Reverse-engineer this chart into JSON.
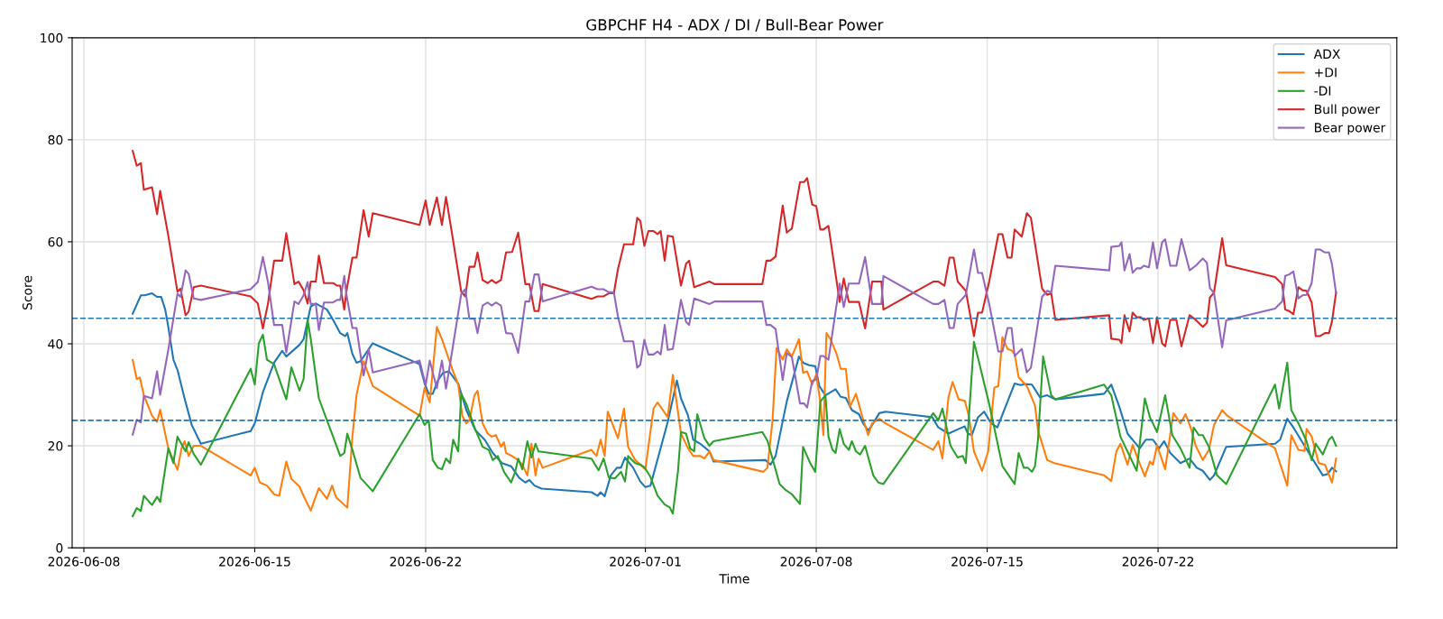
{
  "chart_data": {
    "type": "line",
    "title": "GBPCHF H4 - ADX / DI / Bull-Bear Power",
    "xlabel": "Time",
    "ylabel": "Score",
    "xlim": [
      "2026-06-07T12:29",
      "2026-07-31T18:43"
    ],
    "xticks": [
      "2026-06-08",
      "2026-06-15",
      "2026-06-22",
      "2026-07-01",
      "2026-07-08",
      "2026-07-15",
      "2026-07-22"
    ],
    "ylim": [
      0,
      100
    ],
    "yticks": [
      0,
      20,
      40,
      60,
      80,
      100
    ],
    "grid": true,
    "legend": "top right",
    "line_style": "solid",
    "marker": "none",
    "ref_lines": [
      {
        "axis": "y",
        "value": 45,
        "label": null,
        "color": "#1f77b4",
        "line_style": "dashed"
      },
      {
        "axis": "y",
        "value": 25,
        "label": null,
        "color": "#1f77b4",
        "line_style": "dashed"
      }
    ],
    "series": [
      {
        "name": "ADX",
        "color": "#1f77b4",
        "x": [
          "2026-06-10T00:00",
          "2026-06-10T08:00",
          "2026-06-10T12:00",
          "2026-06-10T19:00",
          "2026-06-11T00:00",
          "2026-06-11T04:00",
          "2026-06-11T08:00",
          "2026-06-11T11:00",
          "2026-06-11T16:00",
          "2026-06-11T20:00",
          "2026-06-12T03:00",
          "2026-06-12T10:00",
          "2026-06-12T19:00",
          "2026-06-14T20:00",
          "2026-06-15T00:00",
          "2026-06-15T08:00",
          "2026-06-15T19:00",
          "2026-06-16T03:00",
          "2026-06-16T07:00",
          "2026-06-16T20:00",
          "2026-06-17T00:00",
          "2026-06-17T07:00",
          "2026-06-17T12:00",
          "2026-06-17T23:00",
          "2026-06-18T05:00",
          "2026-06-18T12:00",
          "2026-06-18T17:00",
          "2026-06-18T19:00",
          "2026-06-19T00:00",
          "2026-06-19T04:00",
          "2026-06-19T08:00",
          "2026-06-19T20:00",
          "2026-06-21T18:00",
          "2026-06-21T23:00",
          "2026-06-22T03:00",
          "2026-06-22T07:00",
          "2026-06-22T12:00",
          "2026-06-22T17:00",
          "2026-06-22T23:00",
          "2026-06-23T08:00",
          "2026-06-23T16:00",
          "2026-06-24T01:00",
          "2026-06-24T10:00",
          "2026-06-24T18:00",
          "2026-06-25T03:00",
          "2026-06-25T12:00",
          "2026-06-25T20:00",
          "2026-06-26T02:00",
          "2026-06-26T06:00",
          "2026-06-26T11:00",
          "2026-06-26T18:00",
          "2026-06-28T19:00",
          "2026-06-29T01:00",
          "2026-06-29T04:00",
          "2026-06-29T08:00",
          "2026-06-29T14:00",
          "2026-06-29T20:00",
          "2026-06-30T00:00",
          "2026-06-30T04:00",
          "2026-06-30T12:00",
          "2026-06-30T19:00",
          "2026-07-01T00:00",
          "2026-07-01T05:00",
          "2026-07-01T11:00",
          "2026-07-01T22:00",
          "2026-07-02T07:00",
          "2026-07-02T11:00",
          "2026-07-02T18:00",
          "2026-07-02T23:00",
          "2026-07-03T06:00",
          "2026-07-03T15:00",
          "2026-07-03T19:00",
          "2026-07-05T22:00",
          "2026-07-06T03:00",
          "2026-07-06T08:00",
          "2026-07-06T19:00",
          "2026-07-07T07:00",
          "2026-07-07T11:00",
          "2026-07-07T17:00",
          "2026-07-07T23:00",
          "2026-07-08T03:00",
          "2026-07-08T09:00",
          "2026-07-08T19:00",
          "2026-07-09T00:00",
          "2026-07-09T05:00",
          "2026-07-09T11:00",
          "2026-07-09T18:00",
          "2026-07-09T22:00",
          "2026-07-10T03:00",
          "2026-07-10T07:00",
          "2026-07-10T14:00",
          "2026-07-10T20:00",
          "2026-07-12T18:00",
          "2026-07-13T00:00",
          "2026-07-13T10:00",
          "2026-07-13T20:00",
          "2026-07-14T02:00",
          "2026-07-14T05:00",
          "2026-07-14T09:00",
          "2026-07-14T15:00",
          "2026-07-14T21:00",
          "2026-07-15T04:00",
          "2026-07-15T10:00",
          "2026-07-15T14:00",
          "2026-07-16T03:00",
          "2026-07-16T09:00",
          "2026-07-16T13:00",
          "2026-07-16T20:00",
          "2026-07-17T04:00",
          "2026-07-17T11:00",
          "2026-07-17T19:00",
          "2026-07-19T19:00",
          "2026-07-20T02:00",
          "2026-07-20T10:00",
          "2026-07-20T18:00",
          "2026-07-21T01:00",
          "2026-07-21T06:00",
          "2026-07-21T12:00",
          "2026-07-21T19:00",
          "2026-07-22T01:00",
          "2026-07-22T06:00",
          "2026-07-22T12:00",
          "2026-07-22T22:00",
          "2026-07-23T07:00",
          "2026-07-23T14:00",
          "2026-07-23T20:00",
          "2026-07-24T03:00",
          "2026-07-24T07:00",
          "2026-07-24T19:00",
          "2026-07-26T19:00",
          "2026-07-27T00:00",
          "2026-07-27T07:00",
          "2026-07-27T13:00",
          "2026-07-28T07:00",
          "2026-07-28T18:00",
          "2026-07-28T23:00",
          "2026-07-29T03:00",
          "2026-07-29T07:00"
        ],
        "values": [
          45.9,
          49.5,
          49.5,
          49.9,
          49.2,
          49.2,
          46.7,
          43.3,
          36.9,
          34.9,
          29.3,
          24.1,
          20.4,
          22.9,
          24.4,
          30.5,
          36.3,
          38.6,
          37.5,
          39.8,
          40.9,
          47.3,
          47.9,
          46.7,
          44.7,
          42.1,
          41.5,
          42.1,
          38.0,
          36.3,
          36.6,
          40.1,
          36.0,
          32.2,
          30.2,
          30.2,
          32.8,
          34.3,
          34.6,
          32.2,
          27.0,
          23.0,
          21.2,
          18.6,
          16.6,
          16.0,
          13.7,
          12.8,
          13.3,
          12.2,
          11.6,
          10.9,
          10.2,
          10.9,
          10.1,
          14.2,
          15.7,
          15.7,
          17.7,
          15.7,
          13.0,
          11.9,
          12.2,
          16.6,
          24.7,
          32.8,
          29.3,
          25.9,
          21.2,
          20.4,
          18.9,
          16.9,
          17.2,
          16.3,
          18.0,
          28.7,
          37.5,
          36.3,
          35.8,
          35.6,
          31.7,
          29.9,
          31.1,
          29.6,
          29.4,
          27.0,
          26.2,
          24.4,
          23.0,
          24.1,
          26.4,
          26.7,
          25.6,
          23.6,
          22.4,
          23.3,
          23.8,
          22.4,
          22.1,
          25.6,
          26.7,
          24.4,
          23.6,
          25.6,
          32.2,
          31.9,
          32.1,
          32.0,
          29.5,
          29.9,
          29.1,
          30.2,
          32.0,
          27.6,
          22.4,
          20.7,
          19.5,
          21.2,
          21.2,
          19.5,
          20.9,
          18.6,
          16.6,
          17.5,
          15.7,
          15.1,
          13.3,
          14.2,
          19.8,
          20.4,
          21.2,
          25.3,
          23.6,
          17.7,
          14.2,
          14.5,
          15.7,
          15.0
        ]
      },
      {
        "name": "+DI",
        "color": "#ff7f0e",
        "x": [
          "2026-06-10T00:00",
          "2026-06-10T04:00",
          "2026-06-10T07:00",
          "2026-06-10T11:00",
          "2026-06-10T19:00",
          "2026-06-11T00:00",
          "2026-06-11T03:00",
          "2026-06-11T11:00",
          "2026-06-11T20:00",
          "2026-06-12T00:00",
          "2026-06-12T03:00",
          "2026-06-12T07:00",
          "2026-06-12T12:00",
          "2026-06-12T19:00",
          "2026-06-14T20:00",
          "2026-06-15T00:00",
          "2026-06-15T05:00",
          "2026-06-15T12:00",
          "2026-06-15T19:00",
          "2026-06-16T00:00",
          "2026-06-16T07:00",
          "2026-06-16T12:00",
          "2026-06-16T20:00",
          "2026-06-17T00:00",
          "2026-06-17T07:00",
          "2026-06-17T15:00",
          "2026-06-17T23:00",
          "2026-06-18T04:00",
          "2026-06-18T08:00",
          "2026-06-18T19:00",
          "2026-06-19T00:00",
          "2026-06-19T04:00",
          "2026-06-19T11:00",
          "2026-06-19T20:00",
          "2026-06-21T18:00",
          "2026-06-21T23:00",
          "2026-06-22T04:00",
          "2026-06-22T11:00",
          "2026-06-22T16:00",
          "2026-06-22T20:00",
          "2026-06-23T02:00",
          "2026-06-23T08:00",
          "2026-06-23T12:00",
          "2026-06-23T16:00",
          "2026-06-23T19:00",
          "2026-06-24T00:00",
          "2026-06-24T03:00",
          "2026-06-24T08:00",
          "2026-06-24T13:00",
          "2026-06-24T17:00",
          "2026-06-24T21:00",
          "2026-06-25T02:00",
          "2026-06-25T05:00",
          "2026-06-25T07:00",
          "2026-06-25T13:00",
          "2026-06-25T19:00",
          "2026-06-25T23:00",
          "2026-06-26T04:00",
          "2026-06-26T08:00",
          "2026-06-26T12:00",
          "2026-06-26T15:00",
          "2026-06-26T19:00",
          "2026-06-28T19:00",
          "2026-06-29T00:00",
          "2026-06-29T04:00",
          "2026-06-29T08:00",
          "2026-06-29T11:00",
          "2026-06-29T21:00",
          "2026-06-30T03:00",
          "2026-06-30T07:00",
          "2026-06-30T14:00",
          "2026-07-01T00:00",
          "2026-07-01T08:00",
          "2026-07-01T12:00",
          "2026-07-01T22:00",
          "2026-07-02T03:00",
          "2026-07-02T11:00",
          "2026-07-02T18:00",
          "2026-07-02T23:00",
          "2026-07-03T06:00",
          "2026-07-03T10:00",
          "2026-07-03T15:00",
          "2026-07-03T19:00",
          "2026-07-05T20:00",
          "2026-07-06T00:00",
          "2026-07-06T05:00",
          "2026-07-06T09:00",
          "2026-07-06T15:00",
          "2026-07-06T19:00",
          "2026-07-07T00:00",
          "2026-07-07T07:00",
          "2026-07-07T11:00",
          "2026-07-07T15:00",
          "2026-07-07T20:00",
          "2026-07-08T00:00",
          "2026-07-08T04:00",
          "2026-07-08T07:00",
          "2026-07-08T10:00",
          "2026-07-08T14:00",
          "2026-07-08T20:00",
          "2026-07-09T00:00",
          "2026-07-09T05:00",
          "2026-07-09T09:00",
          "2026-07-09T15:00",
          "2026-07-09T21:00",
          "2026-07-10T03:00",
          "2026-07-10T07:00",
          "2026-07-10T14:00",
          "2026-07-10T20:00",
          "2026-07-12T19:00",
          "2026-07-13T00:00",
          "2026-07-13T04:00",
          "2026-07-13T10:00",
          "2026-07-13T14:00",
          "2026-07-13T20:00",
          "2026-07-14T02:00",
          "2026-07-14T06:00",
          "2026-07-14T11:00",
          "2026-07-14T19:00",
          "2026-07-15T01:00",
          "2026-07-15T07:00",
          "2026-07-15T11:00",
          "2026-07-15T15:00",
          "2026-07-15T20:00",
          "2026-07-16T00:00",
          "2026-07-16T03:00",
          "2026-07-16T07:00",
          "2026-07-16T15:00",
          "2026-07-16T23:00",
          "2026-07-17T02:00",
          "2026-07-17T11:00",
          "2026-07-17T18:00",
          "2026-07-19T19:00",
          "2026-07-20T02:00",
          "2026-07-20T07:00",
          "2026-07-20T11:00",
          "2026-07-20T18:00",
          "2026-07-20T23:00",
          "2026-07-21T04:00",
          "2026-07-21T11:00",
          "2026-07-21T16:00",
          "2026-07-21T19:00",
          "2026-07-21T23:00",
          "2026-07-22T07:00",
          "2026-07-22T15:00",
          "2026-07-22T22:00",
          "2026-07-23T03:00",
          "2026-07-23T08:00",
          "2026-07-23T13:00",
          "2026-07-23T20:00",
          "2026-07-24T02:00",
          "2026-07-24T07:00",
          "2026-07-24T15:00",
          "2026-07-24T20:00",
          "2026-07-26T19:00",
          "2026-07-27T07:00",
          "2026-07-27T11:00",
          "2026-07-27T18:00",
          "2026-07-28T00:00",
          "2026-07-28T02:00",
          "2026-07-28T07:00",
          "2026-07-28T14:00",
          "2026-07-28T20:00",
          "2026-07-29T03:00",
          "2026-07-29T07:00"
        ],
        "values": [
          36.8,
          33.1,
          33.4,
          29.9,
          25.9,
          24.7,
          27.1,
          19.5,
          15.3,
          19.5,
          20.9,
          18.0,
          20.0,
          20.0,
          14.2,
          15.7,
          12.8,
          12.2,
          10.5,
          10.2,
          16.9,
          13.5,
          12.0,
          10.2,
          7.3,
          11.7,
          9.6,
          12.2,
          9.9,
          7.9,
          21.8,
          29.9,
          36.6,
          31.7,
          25.9,
          31.4,
          28.5,
          43.3,
          40.9,
          38.6,
          35.1,
          32.0,
          25.9,
          24.4,
          25.0,
          29.9,
          30.8,
          24.4,
          22.4,
          21.8,
          22.1,
          19.8,
          20.7,
          18.6,
          18.0,
          17.2,
          16.3,
          14.2,
          20.4,
          14.2,
          17.5,
          15.7,
          19.2,
          18.0,
          21.2,
          18.0,
          26.7,
          21.5,
          27.3,
          19.8,
          17.2,
          15.4,
          27.3,
          28.5,
          25.6,
          33.9,
          22.4,
          19.5,
          18.0,
          18.0,
          17.5,
          18.9,
          17.2,
          14.9,
          15.7,
          25.0,
          39.2,
          36.9,
          38.9,
          37.5,
          40.9,
          34.3,
          34.6,
          32.0,
          34.0,
          28.5,
          22.1,
          42.1,
          40.9,
          38.0,
          35.1,
          35.1,
          27.6,
          30.2,
          25.9,
          22.1,
          24.4,
          25.3,
          24.4,
          19.2,
          20.9,
          17.5,
          29.6,
          32.5,
          29.1,
          28.8,
          25.9,
          18.9,
          15.1,
          18.9,
          31.4,
          31.7,
          41.3,
          39.0,
          38.7,
          38.0,
          33.4,
          31.7,
          27.9,
          23.0,
          17.2,
          16.6,
          14.2,
          13.1,
          18.9,
          20.4,
          16.3,
          20.2,
          17.5,
          14.0,
          16.9,
          16.3,
          20.1,
          15.4,
          26.4,
          24.4,
          26.2,
          23.6,
          20.0,
          17.2,
          19.2,
          24.1,
          27.0,
          25.9,
          19.5,
          12.2,
          22.1,
          19.2,
          19.0,
          23.3,
          21.8,
          16.6,
          16.3,
          12.8,
          17.5
        ]
      },
      {
        "name": "-DI",
        "color": "#2ca02c",
        "x": [
          "2026-06-10T00:00",
          "2026-06-10T04:00",
          "2026-06-10T08:00",
          "2026-06-10T11:00",
          "2026-06-10T19:00",
          "2026-06-11T00:00",
          "2026-06-11T03:00",
          "2026-06-11T11:00",
          "2026-06-11T16:00",
          "2026-06-11T20:00",
          "2026-06-12T04:00",
          "2026-06-12T07:00",
          "2026-06-12T12:00",
          "2026-06-12T19:00",
          "2026-06-14T20:00",
          "2026-06-15T00:00",
          "2026-06-15T04:00",
          "2026-06-15T08:00",
          "2026-06-15T12:00",
          "2026-06-15T19:00",
          "2026-06-16T07:00",
          "2026-06-16T12:00",
          "2026-06-16T20:00",
          "2026-06-17T00:00",
          "2026-06-17T04:00",
          "2026-06-17T07:00",
          "2026-06-17T15:00",
          "2026-06-17T23:00",
          "2026-06-18T05:00",
          "2026-06-18T12:00",
          "2026-06-18T16:00",
          "2026-06-18T19:00",
          "2026-06-19T00:00",
          "2026-06-19T08:00",
          "2026-06-19T20:00",
          "2026-06-21T18:00",
          "2026-06-21T23:00",
          "2026-06-22T03:00",
          "2026-06-22T07:00",
          "2026-06-22T12:00",
          "2026-06-22T16:00",
          "2026-06-22T20:00",
          "2026-06-23T00:00",
          "2026-06-23T03:00",
          "2026-06-23T08:00",
          "2026-06-23T11:00",
          "2026-06-23T16:00",
          "2026-06-24T00:00",
          "2026-06-24T08:00",
          "2026-06-24T14:00",
          "2026-06-24T18:00",
          "2026-06-24T23:00",
          "2026-06-25T05:00",
          "2026-06-25T12:00",
          "2026-06-25T16:00",
          "2026-06-25T19:00",
          "2026-06-25T23:00",
          "2026-06-26T04:00",
          "2026-06-26T08:00",
          "2026-06-26T12:00",
          "2026-06-26T15:00",
          "2026-06-28T19:00",
          "2026-06-29T02:00",
          "2026-06-29T07:00",
          "2026-06-29T12:00",
          "2026-06-29T18:00",
          "2026-06-30T00:00",
          "2026-06-30T04:00",
          "2026-06-30T07:00",
          "2026-06-30T14:00",
          "2026-06-30T19:00",
          "2026-06-30T23:00",
          "2026-07-01T05:00",
          "2026-07-01T12:00",
          "2026-07-01T19:00",
          "2026-07-02T00:00",
          "2026-07-02T03:00",
          "2026-07-02T08:00",
          "2026-07-02T11:00",
          "2026-07-02T16:00",
          "2026-07-02T20:00",
          "2026-07-03T00:00",
          "2026-07-03T03:00",
          "2026-07-03T10:00",
          "2026-07-03T15:00",
          "2026-07-03T19:00",
          "2026-07-05T19:00",
          "2026-07-06T00:00",
          "2026-07-06T12:00",
          "2026-07-06T18:00",
          "2026-07-07T00:00",
          "2026-07-07T08:00",
          "2026-07-07T11:00",
          "2026-07-07T18:00",
          "2026-07-07T23:00",
          "2026-07-08T04:00",
          "2026-07-08T09:00",
          "2026-07-08T12:00",
          "2026-07-08T16:00",
          "2026-07-08T19:00",
          "2026-07-08T23:00",
          "2026-07-09T03:00",
          "2026-07-09T08:00",
          "2026-07-09T11:00",
          "2026-07-09T15:00",
          "2026-07-09T19:00",
          "2026-07-10T00:00",
          "2026-07-10T08:00",
          "2026-07-10T13:00",
          "2026-07-10T18:00",
          "2026-07-12T19:00",
          "2026-07-13T00:00",
          "2026-07-13T04:00",
          "2026-07-13T12:00",
          "2026-07-13T19:00",
          "2026-07-14T00:00",
          "2026-07-14T03:00",
          "2026-07-14T11:00",
          "2026-07-14T15:00",
          "2026-07-15T02:00",
          "2026-07-15T15:00",
          "2026-07-16T03:00",
          "2026-07-16T07:00",
          "2026-07-16T12:00",
          "2026-07-16T16:00",
          "2026-07-16T20:00",
          "2026-07-16T23:00",
          "2026-07-17T02:00",
          "2026-07-17T07:00",
          "2026-07-17T15:00",
          "2026-07-17T19:00",
          "2026-07-19T19:00",
          "2026-07-20T02:00",
          "2026-07-20T11:00",
          "2026-07-21T03:00",
          "2026-07-21T11:00",
          "2026-07-21T16:00",
          "2026-07-21T23:00",
          "2026-07-22T07:00",
          "2026-07-22T14:00",
          "2026-07-22T22:00",
          "2026-07-23T07:00",
          "2026-07-23T11:00",
          "2026-07-23T16:00",
          "2026-07-23T20:00",
          "2026-07-24T02:00",
          "2026-07-24T10:00",
          "2026-07-24T19:00",
          "2026-07-26T19:00",
          "2026-07-26T23:00",
          "2026-07-27T07:00",
          "2026-07-27T11:00",
          "2026-07-27T18:00",
          "2026-07-28T02:00",
          "2026-07-28T07:00",
          "2026-07-28T11:00",
          "2026-07-28T18:00",
          "2026-07-29T00:00",
          "2026-07-29T03:00",
          "2026-07-29T07:00"
        ],
        "values": [
          6.2,
          7.8,
          7.2,
          10.2,
          8.4,
          10.0,
          9.0,
          19.5,
          16.6,
          21.8,
          18.9,
          20.7,
          18.4,
          16.3,
          35.1,
          32.0,
          40.1,
          41.8,
          36.9,
          36.0,
          29.1,
          35.4,
          30.8,
          33.1,
          44.7,
          41.0,
          29.3,
          25.0,
          21.8,
          18.0,
          18.6,
          22.4,
          19.2,
          13.7,
          11.1,
          26.2,
          24.1,
          25.0,
          17.2,
          15.7,
          15.4,
          17.5,
          16.6,
          21.2,
          18.9,
          30.2,
          28.2,
          23.6,
          19.8,
          19.2,
          17.2,
          18.0,
          14.9,
          12.8,
          14.9,
          17.5,
          15.4,
          20.9,
          17.7,
          20.4,
          18.9,
          17.5,
          15.2,
          17.5,
          13.8,
          13.6,
          14.9,
          13.0,
          18.0,
          16.6,
          16.3,
          15.8,
          13.9,
          10.2,
          8.5,
          7.9,
          6.7,
          14.9,
          22.7,
          22.4,
          19.5,
          18.9,
          26.2,
          21.5,
          20.0,
          20.9,
          22.7,
          21.0,
          12.5,
          11.3,
          10.5,
          8.6,
          19.8,
          16.6,
          14.9,
          28.7,
          29.9,
          21.8,
          19.2,
          18.6,
          23.3,
          20.4,
          19.2,
          20.9,
          18.9,
          18.3,
          20.0,
          14.2,
          12.8,
          12.5,
          26.4,
          25.0,
          27.3,
          20.0,
          17.7,
          18.0,
          16.6,
          40.4,
          37.2,
          28.2,
          16.0,
          12.5,
          18.6,
          15.7,
          15.7,
          14.9,
          16.0,
          21.2,
          37.5,
          29.9,
          29.1,
          32.0,
          29.9,
          21.8,
          15.1,
          29.3,
          25.6,
          22.7,
          29.9,
          22.1,
          19.5,
          15.7,
          23.6,
          22.1,
          22.1,
          19.8,
          14.2,
          12.5,
          32.0,
          27.3,
          36.3,
          27.0,
          24.4,
          20.9,
          17.2,
          20.4,
          18.3,
          21.2,
          21.8,
          20.0
        ]
      },
      {
        "name": "Bull power",
        "color": "#d62728",
        "x": [
          "2026-06-10T00:00",
          "2026-06-10T04:00",
          "2026-06-10T08:00",
          "2026-06-10T11:00",
          "2026-06-10T19:00",
          "2026-06-11T00:00",
          "2026-06-11T03:00",
          "2026-06-11T11:00",
          "2026-06-11T20:00",
          "2026-06-11T23:00",
          "2026-06-12T04:00",
          "2026-06-12T07:00",
          "2026-06-12T12:00",
          "2026-06-12T19:00",
          "2026-06-14T20:00",
          "2026-06-15T03:00",
          "2026-06-15T08:00",
          "2026-06-15T13:00",
          "2026-06-15T19:00",
          "2026-06-16T03:00",
          "2026-06-16T07:00",
          "2026-06-16T15:00",
          "2026-06-16T19:00",
          "2026-06-17T00:00",
          "2026-06-17T04:00",
          "2026-06-17T07:00",
          "2026-06-17T12:00",
          "2026-06-17T15:00",
          "2026-06-17T20:00",
          "2026-06-18T05:00",
          "2026-06-18T09:00",
          "2026-06-18T12:00",
          "2026-06-18T16:00",
          "2026-06-18T18:00",
          "2026-06-19T00:00",
          "2026-06-19T04:00",
          "2026-06-19T11:00",
          "2026-06-19T16:00",
          "2026-06-19T20:00",
          "2026-06-21T18:00",
          "2026-06-22T00:00",
          "2026-06-22T04:00",
          "2026-06-22T11:00",
          "2026-06-22T16:00",
          "2026-06-22T20:00",
          "2026-06-23T02:00",
          "2026-06-23T11:00",
          "2026-06-23T15:00",
          "2026-06-23T19:00",
          "2026-06-24T00:00",
          "2026-06-24T03:00",
          "2026-06-24T08:00",
          "2026-06-24T13:00",
          "2026-06-24T17:00",
          "2026-06-24T21:00",
          "2026-06-25T02:00",
          "2026-06-25T07:00",
          "2026-06-25T13:00",
          "2026-06-25T19:00",
          "2026-06-26T02:00",
          "2026-06-26T06:00",
          "2026-06-26T11:00",
          "2026-06-26T15:00",
          "2026-06-26T19:00",
          "2026-06-28T19:00",
          "2026-06-29T01:00",
          "2026-06-29T07:00",
          "2026-06-29T12:00",
          "2026-06-29T17:00",
          "2026-06-29T21:00",
          "2026-06-30T03:00",
          "2026-06-30T12:00",
          "2026-06-30T16:00",
          "2026-06-30T19:00",
          "2026-06-30T23:00",
          "2026-07-01T03:00",
          "2026-07-01T08:00",
          "2026-07-01T12:00",
          "2026-07-01T15:00",
          "2026-07-01T19:00",
          "2026-07-01T22:00",
          "2026-07-02T03:00",
          "2026-07-02T11:00",
          "2026-07-02T16:00",
          "2026-07-02T19:00",
          "2026-07-03T00:00",
          "2026-07-03T15:00",
          "2026-07-03T20:00",
          "2026-07-05T19:00",
          "2026-07-05T23:00",
          "2026-07-06T03:00",
          "2026-07-06T08:00",
          "2026-07-06T15:00",
          "2026-07-06T19:00",
          "2026-07-07T00:00",
          "2026-07-07T08:00",
          "2026-07-07T12:00",
          "2026-07-07T15:00",
          "2026-07-07T20:00",
          "2026-07-08T00:00",
          "2026-07-08T04:00",
          "2026-07-08T07:00",
          "2026-07-08T12:00",
          "2026-07-08T23:00",
          "2026-07-09T03:00",
          "2026-07-09T08:00",
          "2026-07-09T18:00",
          "2026-07-10T00:00",
          "2026-07-10T07:00",
          "2026-07-10T16:00",
          "2026-07-10T18:00",
          "2026-07-12T19:00",
          "2026-07-13T00:00",
          "2026-07-13T06:00",
          "2026-07-13T11:00",
          "2026-07-13T15:00",
          "2026-07-13T19:00",
          "2026-07-14T03:00",
          "2026-07-14T11:00",
          "2026-07-14T15:00",
          "2026-07-14T19:00",
          "2026-07-15T02:00",
          "2026-07-15T11:00",
          "2026-07-15T15:00",
          "2026-07-15T20:00",
          "2026-07-16T00:00",
          "2026-07-16T03:00",
          "2026-07-16T10:00",
          "2026-07-16T15:00",
          "2026-07-16T19:00",
          "2026-07-17T06:00",
          "2026-07-17T11:00",
          "2026-07-17T15:00",
          "2026-07-17T19:00",
          "2026-07-20T00:00",
          "2026-07-20T02:00",
          "2026-07-20T10:00",
          "2026-07-20T12:00",
          "2026-07-20T15:00",
          "2026-07-20T20:00",
          "2026-07-20T23:00",
          "2026-07-21T03:00",
          "2026-07-21T07:00",
          "2026-07-21T10:00",
          "2026-07-21T15:00",
          "2026-07-21T19:00",
          "2026-07-21T23:00",
          "2026-07-22T04:00",
          "2026-07-22T07:00",
          "2026-07-22T12:00",
          "2026-07-22T18:00",
          "2026-07-22T23:00",
          "2026-07-23T07:00",
          "2026-07-23T13:00",
          "2026-07-23T20:00",
          "2026-07-24T00:00",
          "2026-07-24T03:00",
          "2026-07-24T07:00",
          "2026-07-24T15:00",
          "2026-07-24T19:00",
          "2026-07-26T19:00",
          "2026-07-27T02:00",
          "2026-07-27T05:00",
          "2026-07-27T09:00",
          "2026-07-27T13:00",
          "2026-07-27T18:00",
          "2026-07-27T22:00",
          "2026-07-28T02:00",
          "2026-07-28T07:00",
          "2026-07-28T11:00",
          "2026-07-28T15:00",
          "2026-07-28T20:00",
          "2026-07-29T00:00",
          "2026-07-29T03:00",
          "2026-07-29T07:00"
        ],
        "values": [
          77.8,
          74.9,
          75.4,
          70.2,
          70.7,
          65.4,
          70.0,
          61.2,
          50.2,
          50.8,
          45.6,
          46.3,
          51.1,
          51.4,
          49.3,
          47.9,
          43.0,
          47.9,
          56.3,
          56.3,
          61.7,
          51.7,
          52.2,
          50.5,
          47.9,
          52.2,
          52.2,
          57.3,
          51.9,
          51.9,
          51.4,
          51.4,
          46.7,
          50.2,
          56.9,
          56.9,
          66.2,
          61.0,
          65.6,
          63.3,
          68.1,
          63.3,
          68.7,
          63.3,
          68.8,
          61.5,
          50.2,
          49.3,
          55.1,
          55.1,
          57.9,
          52.5,
          51.9,
          52.5,
          51.9,
          52.5,
          57.9,
          58.0,
          61.8,
          51.7,
          51.7,
          46.4,
          46.4,
          51.7,
          48.8,
          49.3,
          49.3,
          49.9,
          49.9,
          54.6,
          59.5,
          59.5,
          64.7,
          64.1,
          59.2,
          62.1,
          62.1,
          61.5,
          62.1,
          56.3,
          61.2,
          61.0,
          51.4,
          55.7,
          56.3,
          51.1,
          52.2,
          51.7,
          51.7,
          56.3,
          56.3,
          57.1,
          67.1,
          61.8,
          62.6,
          71.7,
          71.7,
          72.5,
          67.3,
          67.0,
          62.4,
          62.4,
          63.1,
          48.2,
          52.8,
          48.2,
          48.2,
          43.0,
          52.2,
          52.2,
          46.7,
          52.2,
          52.2,
          51.4,
          56.9,
          56.9,
          52.2,
          50.4,
          41.5,
          46.1,
          46.1,
          52.2,
          61.5,
          61.5,
          56.9,
          56.9,
          62.4,
          61.0,
          65.6,
          64.7,
          50.8,
          49.6,
          49.9,
          44.7,
          45.6,
          41.0,
          40.8,
          40.1,
          45.6,
          42.4,
          46.1,
          45.2,
          45.2,
          44.7,
          45.0,
          40.1,
          45.2,
          40.1,
          39.5,
          44.7,
          44.7,
          39.5,
          45.6,
          44.7,
          43.3,
          44.1,
          49.1,
          50.0,
          60.7,
          55.4,
          53.1,
          51.7,
          46.7,
          46.4,
          45.8,
          51.1,
          50.5,
          50.4,
          48.1,
          41.5,
          41.5,
          42.1,
          42.1,
          44.4,
          50.1
        ]
      },
      {
        "name": "Bear power",
        "color": "#9467bd",
        "x": [
          "2026-06-10T00:00",
          "2026-06-10T04:00",
          "2026-06-10T08:00",
          "2026-06-10T11:00",
          "2026-06-10T19:00",
          "2026-06-11T00:00",
          "2026-06-11T03:00",
          "2026-06-11T11:00",
          "2026-06-11T20:00",
          "2026-06-11T23:00",
          "2026-06-12T04:00",
          "2026-06-12T07:00",
          "2026-06-12T12:00",
          "2026-06-12T19:00",
          "2026-06-14T20:00",
          "2026-06-15T03:00",
          "2026-06-15T08:00",
          "2026-06-15T13:00",
          "2026-06-15T19:00",
          "2026-06-16T03:00",
          "2026-06-16T07:00",
          "2026-06-16T15:00",
          "2026-06-16T19:00",
          "2026-06-17T00:00",
          "2026-06-17T04:00",
          "2026-06-17T07:00",
          "2026-06-17T12:00",
          "2026-06-17T15:00",
          "2026-06-17T20:00",
          "2026-06-18T05:00",
          "2026-06-18T09:00",
          "2026-06-18T12:00",
          "2026-06-18T16:00",
          "2026-06-18T18:00",
          "2026-06-19T00:00",
          "2026-06-19T04:00",
          "2026-06-19T11:00",
          "2026-06-19T16:00",
          "2026-06-19T20:00",
          "2026-06-21T18:00",
          "2026-06-22T00:00",
          "2026-06-22T04:00",
          "2026-06-22T11:00",
          "2026-06-22T16:00",
          "2026-06-22T20:00",
          "2026-06-23T02:00",
          "2026-06-23T11:00",
          "2026-06-23T15:00",
          "2026-06-23T19:00",
          "2026-06-24T00:00",
          "2026-06-24T03:00",
          "2026-06-24T08:00",
          "2026-06-24T13:00",
          "2026-06-24T17:00",
          "2026-06-24T21:00",
          "2026-06-25T02:00",
          "2026-06-25T07:00",
          "2026-06-25T13:00",
          "2026-06-25T19:00",
          "2026-06-26T02:00",
          "2026-06-26T06:00",
          "2026-06-26T11:00",
          "2026-06-26T15:00",
          "2026-06-26T19:00",
          "2026-06-28T19:00",
          "2026-06-29T01:00",
          "2026-06-29T07:00",
          "2026-06-29T12:00",
          "2026-06-29T17:00",
          "2026-06-29T21:00",
          "2026-06-30T03:00",
          "2026-06-30T12:00",
          "2026-06-30T16:00",
          "2026-06-30T19:00",
          "2026-06-30T23:00",
          "2026-07-01T03:00",
          "2026-07-01T08:00",
          "2026-07-01T12:00",
          "2026-07-01T15:00",
          "2026-07-01T19:00",
          "2026-07-01T22:00",
          "2026-07-02T03:00",
          "2026-07-02T11:00",
          "2026-07-02T16:00",
          "2026-07-02T19:00",
          "2026-07-03T00:00",
          "2026-07-03T15:00",
          "2026-07-03T20:00",
          "2026-07-05T19:00",
          "2026-07-05T23:00",
          "2026-07-06T03:00",
          "2026-07-06T08:00",
          "2026-07-06T15:00",
          "2026-07-06T19:00",
          "2026-07-07T00:00",
          "2026-07-07T08:00",
          "2026-07-07T12:00",
          "2026-07-07T15:00",
          "2026-07-07T20:00",
          "2026-07-08T00:00",
          "2026-07-08T04:00",
          "2026-07-08T07:00",
          "2026-07-08T12:00",
          "2026-07-08T23:00",
          "2026-07-09T03:00",
          "2026-07-09T08:00",
          "2026-07-09T18:00",
          "2026-07-10T00:00",
          "2026-07-10T07:00",
          "2026-07-10T16:00",
          "2026-07-10T18:00",
          "2026-07-12T19:00",
          "2026-07-13T00:00",
          "2026-07-13T06:00",
          "2026-07-13T11:00",
          "2026-07-13T15:00",
          "2026-07-13T19:00",
          "2026-07-14T03:00",
          "2026-07-14T11:00",
          "2026-07-14T15:00",
          "2026-07-14T19:00",
          "2026-07-15T02:00",
          "2026-07-15T11:00",
          "2026-07-15T15:00",
          "2026-07-15T20:00",
          "2026-07-16T00:00",
          "2026-07-16T03:00",
          "2026-07-16T10:00",
          "2026-07-16T15:00",
          "2026-07-16T19:00",
          "2026-07-17T06:00",
          "2026-07-17T11:00",
          "2026-07-17T15:00",
          "2026-07-17T19:00",
          "2026-07-20T00:00",
          "2026-07-20T02:00",
          "2026-07-20T10:00",
          "2026-07-20T12:00",
          "2026-07-20T15:00",
          "2026-07-20T20:00",
          "2026-07-20T23:00",
          "2026-07-21T03:00",
          "2026-07-21T07:00",
          "2026-07-21T10:00",
          "2026-07-21T15:00",
          "2026-07-21T19:00",
          "2026-07-21T23:00",
          "2026-07-22T04:00",
          "2026-07-22T07:00",
          "2026-07-22T12:00",
          "2026-07-22T18:00",
          "2026-07-22T23:00",
          "2026-07-23T07:00",
          "2026-07-23T13:00",
          "2026-07-23T20:00",
          "2026-07-24T00:00",
          "2026-07-24T03:00",
          "2026-07-24T07:00",
          "2026-07-24T15:00",
          "2026-07-24T19:00",
          "2026-07-26T19:00",
          "2026-07-27T02:00",
          "2026-07-27T05:00",
          "2026-07-27T09:00",
          "2026-07-27T13:00",
          "2026-07-27T18:00",
          "2026-07-27T22:00",
          "2026-07-28T02:00",
          "2026-07-28T07:00",
          "2026-07-28T11:00",
          "2026-07-28T15:00",
          "2026-07-28T20:00",
          "2026-07-29T00:00",
          "2026-07-29T03:00",
          "2026-07-29T07:00"
        ],
        "values": [
          22.2,
          25.1,
          24.6,
          29.8,
          29.3,
          34.6,
          30.0,
          38.8,
          49.8,
          49.2,
          54.4,
          53.7,
          48.9,
          48.6,
          50.7,
          52.1,
          57.0,
          52.1,
          43.7,
          43.7,
          38.3,
          48.3,
          47.8,
          49.5,
          52.1,
          47.8,
          47.8,
          42.7,
          48.1,
          48.1,
          48.6,
          48.6,
          53.3,
          49.8,
          43.1,
          43.1,
          33.8,
          39.0,
          34.4,
          36.7,
          31.9,
          36.7,
          31.3,
          36.7,
          31.2,
          38.5,
          49.8,
          50.7,
          44.9,
          44.9,
          42.1,
          47.5,
          48.1,
          47.5,
          48.1,
          47.5,
          42.1,
          42.0,
          38.2,
          48.3,
          48.3,
          53.6,
          53.6,
          48.3,
          51.2,
          50.7,
          50.7,
          50.1,
          50.1,
          45.4,
          40.5,
          40.5,
          35.3,
          35.9,
          40.8,
          37.9,
          37.9,
          38.5,
          37.9,
          43.7,
          38.8,
          39.0,
          48.6,
          44.3,
          43.7,
          48.9,
          47.8,
          48.3,
          48.3,
          43.7,
          43.7,
          42.9,
          32.9,
          38.2,
          37.4,
          28.3,
          28.3,
          27.5,
          32.7,
          33.0,
          37.6,
          37.6,
          36.9,
          51.8,
          47.2,
          51.8,
          51.8,
          57.0,
          47.8,
          47.8,
          53.3,
          47.8,
          47.8,
          48.6,
          43.1,
          43.1,
          47.8,
          49.6,
          58.5,
          53.9,
          53.9,
          47.8,
          38.5,
          38.5,
          43.1,
          43.1,
          37.6,
          39.0,
          34.4,
          35.3,
          49.2,
          50.4,
          50.1,
          55.3,
          54.4,
          59.0,
          59.2,
          59.9,
          54.4,
          57.6,
          53.9,
          54.8,
          54.8,
          55.3,
          55.0,
          59.9,
          54.8,
          59.9,
          60.5,
          55.3,
          55.3,
          60.5,
          54.4,
          55.3,
          56.7,
          55.9,
          50.9,
          50.0,
          39.3,
          44.6,
          46.9,
          48.3,
          53.3,
          53.6,
          54.2,
          48.9,
          49.5,
          49.6,
          51.9,
          58.5,
          58.5,
          57.9,
          57.9,
          55.6,
          49.9
        ]
      }
    ]
  }
}
